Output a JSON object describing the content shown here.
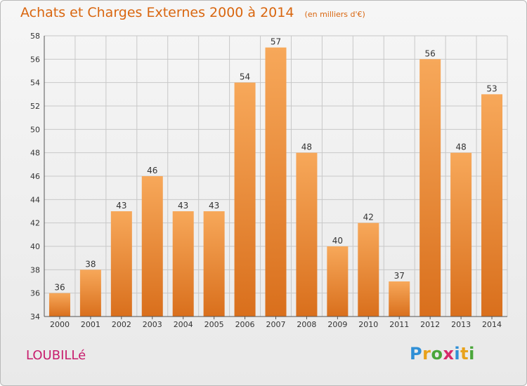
{
  "header": {
    "title": "Achats et Charges Externes 2000 à 2014",
    "subtitle": "(en milliers d'€)"
  },
  "footer": {
    "place_name": "LOUBILLé",
    "brand": {
      "text": "Proxiti",
      "letters": [
        {
          "ch": "P",
          "color": "#2f8fd6"
        },
        {
          "ch": "r",
          "color": "#e8a21c"
        },
        {
          "ch": "o",
          "color": "#4aa63a"
        },
        {
          "ch": "x",
          "color": "#d72a6a"
        },
        {
          "ch": "i",
          "color": "#2f8fd6"
        },
        {
          "ch": "t",
          "color": "#e8a21c"
        },
        {
          "ch": "i",
          "color": "#4aa63a"
        }
      ]
    }
  },
  "colors": {
    "title": "#d9660f",
    "bar_light": "#f7a85a",
    "bar_dark": "#d96f1c",
    "place_name": "#c81d6d",
    "grid": "#c8c8c8",
    "axis_text": "#333333"
  },
  "chart_data": {
    "type": "bar",
    "title": "Achats et Charges Externes 2000 à 2014",
    "subtitle": "(en milliers d'€)",
    "xlabel": "",
    "ylabel": "",
    "categories": [
      "2000",
      "2001",
      "2002",
      "2003",
      "2004",
      "2005",
      "2006",
      "2007",
      "2008",
      "2009",
      "2010",
      "2011",
      "2012",
      "2013",
      "2014"
    ],
    "values": [
      36,
      38,
      43,
      46,
      43,
      43,
      54,
      57,
      48,
      40,
      42,
      37,
      56,
      48,
      53
    ],
    "ylim": [
      34,
      58
    ],
    "yticks": [
      34,
      36,
      38,
      40,
      42,
      44,
      46,
      48,
      50,
      52,
      54,
      56,
      58
    ],
    "grid": true,
    "legend": "none"
  }
}
